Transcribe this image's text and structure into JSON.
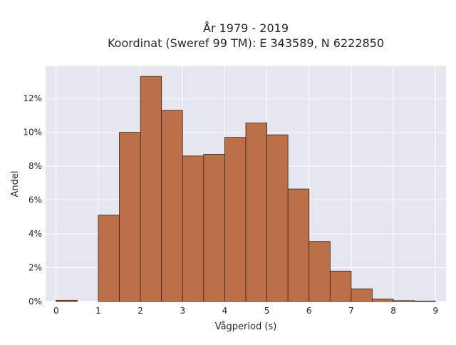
{
  "chart_data": {
    "type": "bar",
    "title_line1": "År 1979 - 2019",
    "title_line2": "Koordinat (Sweref 99 TM): E 343589, N 6222850",
    "xlabel": "Vågperiod (s)",
    "ylabel": "Andel",
    "xlim": [
      -0.25,
      9.25
    ],
    "ylim": [
      0,
      13.9
    ],
    "x_ticks": [
      0,
      1,
      2,
      3,
      4,
      5,
      6,
      7,
      8,
      9
    ],
    "y_ticks": [
      0,
      2,
      4,
      6,
      8,
      10,
      12
    ],
    "y_tick_labels": [
      "0%",
      "2%",
      "4%",
      "6%",
      "8%",
      "10%",
      "12%"
    ],
    "bin_width": 0.5,
    "bins": [
      {
        "x0": 0.0,
        "value": 0.07
      },
      {
        "x0": 0.5,
        "value": 0.0
      },
      {
        "x0": 1.0,
        "value": 5.1
      },
      {
        "x0": 1.5,
        "value": 10.0
      },
      {
        "x0": 2.0,
        "value": 13.3
      },
      {
        "x0": 2.5,
        "value": 11.3
      },
      {
        "x0": 3.0,
        "value": 8.6
      },
      {
        "x0": 3.5,
        "value": 8.7
      },
      {
        "x0": 4.0,
        "value": 9.7
      },
      {
        "x0": 4.5,
        "value": 10.55
      },
      {
        "x0": 5.0,
        "value": 9.85
      },
      {
        "x0": 5.5,
        "value": 6.65
      },
      {
        "x0": 6.0,
        "value": 3.55
      },
      {
        "x0": 6.5,
        "value": 1.8
      },
      {
        "x0": 7.0,
        "value": 0.75
      },
      {
        "x0": 7.5,
        "value": 0.15
      },
      {
        "x0": 8.0,
        "value": 0.05
      },
      {
        "x0": 8.5,
        "value": 0.03
      }
    ],
    "grid": true,
    "colors": {
      "bar_fill": "#b8693f",
      "bar_stroke": "#3a2418",
      "plot_background": "#e5e6f0",
      "grid": "#ffffff"
    }
  }
}
